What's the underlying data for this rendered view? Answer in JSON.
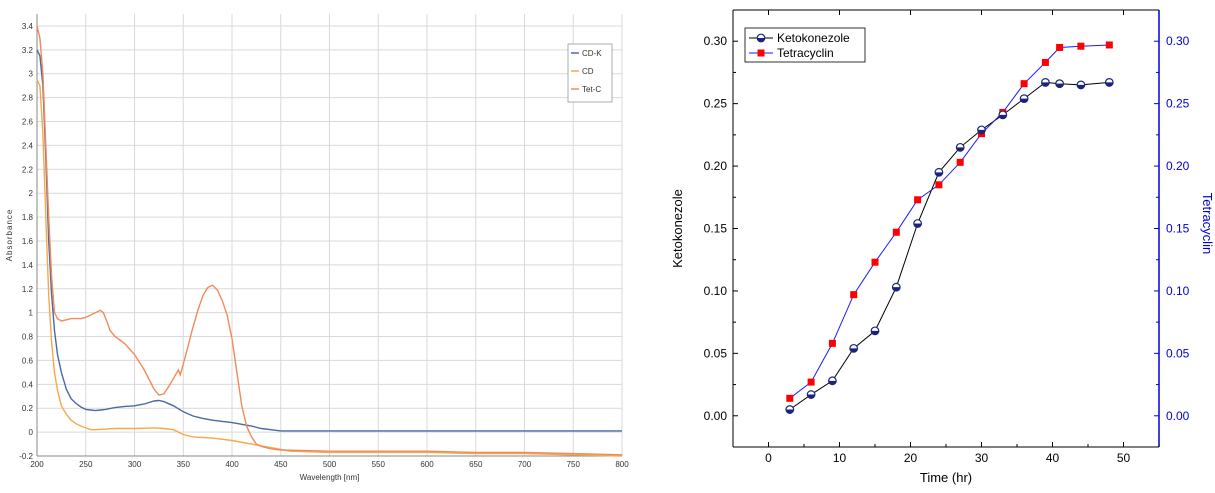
{
  "chart_data": [
    {
      "type": "line",
      "xlabel": "Wavelength [nm]",
      "ylabel": "Absorbance",
      "xlim": [
        200,
        800
      ],
      "ylim": [
        -0.2,
        3.5
      ],
      "xticks": [
        200,
        250,
        300,
        350,
        400,
        450,
        500,
        550,
        600,
        650,
        700,
        750,
        800
      ],
      "yticks": [
        -0.2,
        0,
        0.2,
        0.4,
        0.6,
        0.8,
        1,
        1.2,
        1.4,
        1.6,
        1.8,
        2,
        2.2,
        2.4,
        2.6,
        2.8,
        3,
        3.2,
        3.4
      ],
      "grid": true,
      "legend_position": "top-right",
      "series": [
        {
          "name": "CD-K",
          "color": "#4a69a8",
          "x": [
            200,
            203,
            206,
            209,
            212,
            215,
            218,
            221,
            225,
            230,
            235,
            240,
            245,
            250,
            255,
            260,
            265,
            270,
            280,
            290,
            300,
            310,
            320,
            325,
            330,
            340,
            350,
            360,
            370,
            380,
            390,
            400,
            410,
            420,
            430,
            440,
            450,
            500,
            550,
            600,
            650,
            700,
            750,
            800
          ],
          "y": [
            3.2,
            3.15,
            2.9,
            2.3,
            1.6,
            1.15,
            0.85,
            0.65,
            0.5,
            0.36,
            0.28,
            0.24,
            0.21,
            0.19,
            0.185,
            0.18,
            0.185,
            0.19,
            0.205,
            0.215,
            0.22,
            0.235,
            0.26,
            0.265,
            0.255,
            0.22,
            0.17,
            0.135,
            0.115,
            0.1,
            0.09,
            0.08,
            0.065,
            0.05,
            0.03,
            0.02,
            0.01,
            0.01,
            0.01,
            0.01,
            0.01,
            0.01,
            0.01,
            0.01
          ]
        },
        {
          "name": "CD",
          "color": "#f6a84a",
          "x": [
            200,
            203,
            206,
            209,
            212,
            215,
            218,
            221,
            225,
            230,
            235,
            240,
            245,
            250,
            255,
            260,
            270,
            280,
            300,
            320,
            330,
            340,
            350,
            360,
            380,
            400,
            420,
            440,
            460,
            500,
            550,
            600,
            650,
            700,
            750,
            800
          ],
          "y": [
            2.95,
            2.9,
            2.5,
            1.8,
            1.15,
            0.75,
            0.5,
            0.35,
            0.22,
            0.15,
            0.1,
            0.07,
            0.05,
            0.035,
            0.02,
            0.02,
            0.025,
            0.03,
            0.03,
            0.035,
            0.03,
            0.02,
            -0.02,
            -0.04,
            -0.05,
            -0.07,
            -0.1,
            -0.13,
            -0.16,
            -0.17,
            -0.17,
            -0.17,
            -0.18,
            -0.18,
            -0.19,
            -0.2
          ]
        },
        {
          "name": "Tet-C",
          "color": "#f08a5b",
          "x": [
            200,
            203,
            206,
            209,
            212,
            215,
            218,
            221,
            225,
            230,
            235,
            240,
            245,
            250,
            255,
            260,
            265,
            268,
            272,
            275,
            280,
            290,
            300,
            310,
            320,
            325,
            330,
            335,
            340,
            345,
            347,
            350,
            355,
            360,
            365,
            370,
            375,
            380,
            385,
            390,
            395,
            400,
            405,
            410,
            415,
            420,
            425,
            430,
            440,
            450,
            500,
            550,
            600,
            650,
            700,
            750,
            800
          ],
          "y": [
            3.4,
            3.3,
            3.0,
            2.4,
            1.8,
            1.3,
            1.0,
            0.95,
            0.93,
            0.94,
            0.95,
            0.95,
            0.95,
            0.96,
            0.98,
            1.0,
            1.02,
            1.0,
            0.92,
            0.85,
            0.8,
            0.74,
            0.65,
            0.52,
            0.36,
            0.31,
            0.32,
            0.38,
            0.45,
            0.52,
            0.48,
            0.57,
            0.72,
            0.88,
            1.02,
            1.14,
            1.21,
            1.23,
            1.19,
            1.1,
            0.98,
            0.78,
            0.5,
            0.22,
            0.05,
            -0.04,
            -0.1,
            -0.12,
            -0.14,
            -0.15,
            -0.16,
            -0.16,
            -0.16,
            -0.17,
            -0.17,
            -0.18,
            -0.19
          ]
        }
      ]
    },
    {
      "type": "line",
      "xlabel": "Time (hr)",
      "ylabel": "Ketokonezole",
      "ylabel_right": "Tetracyclin",
      "xlim": [
        -5,
        55
      ],
      "ylim": [
        -0.025,
        0.325
      ],
      "xticks": [
        0,
        10,
        20,
        30,
        40,
        50
      ],
      "yticks": [
        0.0,
        0.05,
        0.1,
        0.15,
        0.2,
        0.25,
        0.3
      ],
      "ytick_labels": [
        "0.00",
        "0.05",
        "0.10",
        "0.15",
        "0.20",
        "0.25",
        "0.30"
      ],
      "grid": false,
      "legend_position": "top-left",
      "axis_colors": {
        "left": "#000000",
        "right": "#0000dd"
      },
      "series": [
        {
          "name": "Ketokonezole",
          "color": "#000000",
          "marker_color": "#1a237e",
          "x": [
            3,
            6,
            9,
            12,
            15,
            18,
            21,
            24,
            27,
            30,
            33,
            36,
            39,
            41,
            44,
            48
          ],
          "y": [
            0.005,
            0.017,
            0.028,
            0.054,
            0.068,
            0.103,
            0.154,
            0.195,
            0.215,
            0.229,
            0.241,
            0.254,
            0.267,
            0.266,
            0.265,
            0.267
          ]
        },
        {
          "name": "Tetracyclin",
          "color": "#1a1aff",
          "marker_color": "#ff0000",
          "x": [
            3,
            6,
            9,
            12,
            15,
            18,
            21,
            24,
            27,
            30,
            33,
            36,
            39,
            41,
            44,
            48
          ],
          "y": [
            0.014,
            0.027,
            0.058,
            0.097,
            0.123,
            0.147,
            0.173,
            0.185,
            0.203,
            0.226,
            0.243,
            0.266,
            0.283,
            0.295,
            0.296,
            0.297
          ]
        }
      ]
    }
  ]
}
